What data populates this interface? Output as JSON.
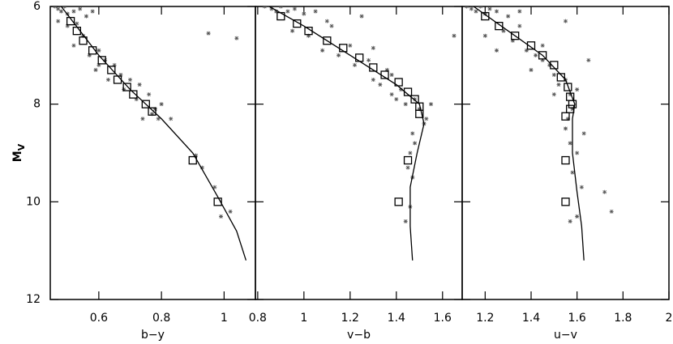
{
  "chart_data": [
    {
      "type": "scatter",
      "xlabel": "b−y",
      "ylabel": {
        "main": "M",
        "sub": "V"
      },
      "xlim": [
        0.445,
        1.1
      ],
      "xticks": [
        0.6,
        0.8,
        1
      ],
      "ylim": [
        6,
        12
      ],
      "yticks": [
        6,
        8,
        10,
        12
      ],
      "y_inverted": true,
      "show_ytick_labels": true,
      "series": [
        {
          "marker": "plus",
          "color": "#555555",
          "x": [
            0.46,
            0.47,
            0.48,
            0.49,
            0.5,
            0.52,
            0.54,
            0.56,
            0.58,
            0.47,
            0.5,
            0.53,
            0.55,
            0.52,
            0.57,
            0.6,
            0.62,
            0.59,
            0.63,
            0.65,
            0.67,
            0.68,
            0.7,
            0.72,
            0.73,
            0.76,
            0.78,
            0.79,
            0.8,
            0.74,
            0.77,
            0.83,
            0.91,
            0.93,
            0.97,
            0.99,
            1.02,
            0.6,
            0.95,
            1.04
          ],
          "y": [
            6.0,
            6.05,
            6.1,
            6.0,
            6.15,
            6.1,
            6.05,
            6.2,
            6.1,
            6.3,
            6.4,
            6.35,
            6.6,
            6.8,
            7.0,
            6.9,
            7.1,
            7.3,
            7.5,
            7.2,
            7.4,
            7.7,
            7.5,
            7.9,
            7.6,
            7.8,
            8.1,
            8.3,
            8.0,
            8.3,
            8.2,
            8.3,
            9.05,
            9.3,
            9.7,
            10.3,
            10.2,
            7.2,
            6.55,
            6.65
          ]
        },
        {
          "marker": "square",
          "color": "#000000",
          "x": [
            0.51,
            0.53,
            0.55,
            0.58,
            0.61,
            0.64,
            0.66,
            0.69,
            0.71,
            0.75,
            0.77,
            0.9,
            0.98
          ],
          "y": [
            6.3,
            6.5,
            6.7,
            6.9,
            7.1,
            7.3,
            7.5,
            7.65,
            7.8,
            8.0,
            8.15,
            9.15,
            10.0
          ]
        },
        {
          "marker": "line",
          "color": "#000000",
          "x": [
            0.48,
            0.6,
            0.7,
            0.8,
            0.9,
            0.98,
            1.04,
            1.07
          ],
          "y": [
            6.0,
            7.0,
            7.7,
            8.3,
            9.0,
            9.9,
            10.6,
            11.2
          ]
        }
      ]
    },
    {
      "type": "scatter",
      "xlabel": "v−b",
      "xlim": [
        0.79,
        1.685
      ],
      "xticks": [
        0.8,
        1,
        1.2,
        1.4,
        1.6
      ],
      "ylim": [
        6,
        12
      ],
      "yticks": [
        6,
        8,
        10,
        12
      ],
      "y_inverted": true,
      "show_ytick_labels": false,
      "series": [
        {
          "marker": "plus",
          "color": "#555555",
          "x": [
            0.83,
            0.86,
            0.88,
            0.9,
            0.93,
            0.96,
            1.0,
            1.05,
            1.1,
            0.95,
            1.02,
            1.08,
            1.15,
            1.2,
            1.22,
            1.28,
            1.3,
            1.33,
            1.36,
            1.38,
            1.42,
            1.44,
            1.48,
            1.5,
            1.53,
            1.55,
            1.52,
            1.47,
            1.46,
            1.45,
            1.47,
            1.46,
            1.44,
            1.48,
            1.38,
            1.25,
            1.65,
            1.12,
            1.3,
            1.4
          ],
          "y": [
            6.0,
            6.05,
            6.1,
            6.0,
            6.1,
            6.05,
            6.15,
            6.1,
            6.3,
            6.5,
            6.6,
            6.9,
            7.0,
            6.8,
            7.2,
            7.1,
            7.5,
            7.6,
            7.3,
            7.8,
            7.7,
            8.0,
            7.9,
            8.1,
            8.3,
            8.0,
            8.4,
            8.6,
            9.0,
            9.3,
            9.5,
            10.1,
            10.4,
            8.8,
            7.4,
            6.2,
            6.6,
            6.4,
            6.85,
            7.9
          ]
        },
        {
          "marker": "square",
          "color": "#000000",
          "x": [
            0.9,
            0.97,
            1.02,
            1.1,
            1.17,
            1.24,
            1.3,
            1.35,
            1.41,
            1.45,
            1.48,
            1.5,
            1.5,
            1.45,
            1.41
          ],
          "y": [
            6.2,
            6.35,
            6.5,
            6.7,
            6.85,
            7.05,
            7.25,
            7.4,
            7.55,
            7.75,
            7.9,
            8.05,
            8.2,
            9.15,
            10.0
          ]
        },
        {
          "marker": "line",
          "color": "#000000",
          "x": [
            0.85,
            1.0,
            1.2,
            1.4,
            1.5,
            1.52,
            1.49,
            1.46,
            1.46,
            1.47
          ],
          "y": [
            6.0,
            6.4,
            7.0,
            7.6,
            8.0,
            8.4,
            9.0,
            9.7,
            10.5,
            11.2
          ]
        }
      ]
    },
    {
      "type": "scatter",
      "xlabel": "u−v",
      "xlim": [
        1.1,
        2.0
      ],
      "xticks": [
        1.2,
        1.4,
        1.6,
        1.8,
        2
      ],
      "ylim": [
        6,
        12
      ],
      "yticks": [
        6,
        8,
        10,
        12
      ],
      "y_inverted": true,
      "show_ytick_labels": false,
      "series": [
        {
          "marker": "plus",
          "color": "#555555",
          "x": [
            1.12,
            1.14,
            1.16,
            1.18,
            1.2,
            1.22,
            1.25,
            1.3,
            1.35,
            1.28,
            1.32,
            1.38,
            1.42,
            1.45,
            1.48,
            1.5,
            1.52,
            1.55,
            1.57,
            1.6,
            1.58,
            1.56,
            1.55,
            1.57,
            1.6,
            1.58,
            1.62,
            1.6,
            1.57,
            1.63,
            1.72,
            1.75,
            1.55,
            1.25,
            1.35,
            1.45,
            1.2,
            1.4,
            1.65,
            1.5
          ],
          "y": [
            6.0,
            6.05,
            6.1,
            6.0,
            6.15,
            6.05,
            6.1,
            6.2,
            6.1,
            6.5,
            6.7,
            6.9,
            7.0,
            6.8,
            7.2,
            7.4,
            7.6,
            7.5,
            7.8,
            7.7,
            8.1,
            8.3,
            8.5,
            8.8,
            9.0,
            9.4,
            9.7,
            10.3,
            10.4,
            8.6,
            9.8,
            10.2,
            6.3,
            6.9,
            6.4,
            7.1,
            6.6,
            7.3,
            7.1,
            7.8
          ]
        },
        {
          "marker": "square",
          "color": "#000000",
          "x": [
            1.2,
            1.26,
            1.33,
            1.4,
            1.45,
            1.5,
            1.53,
            1.56,
            1.57,
            1.58,
            1.57,
            1.55,
            1.55,
            1.55
          ],
          "y": [
            6.2,
            6.4,
            6.6,
            6.8,
            7.0,
            7.2,
            7.45,
            7.65,
            7.85,
            8.0,
            8.1,
            8.25,
            9.15,
            10.0
          ]
        },
        {
          "marker": "line",
          "color": "#000000",
          "x": [
            1.15,
            1.3,
            1.45,
            1.55,
            1.59,
            1.58,
            1.58,
            1.6,
            1.62,
            1.63
          ],
          "y": [
            6.0,
            6.5,
            7.0,
            7.5,
            8.0,
            8.3,
            9.0,
            9.8,
            10.5,
            11.2
          ]
        }
      ]
    }
  ]
}
